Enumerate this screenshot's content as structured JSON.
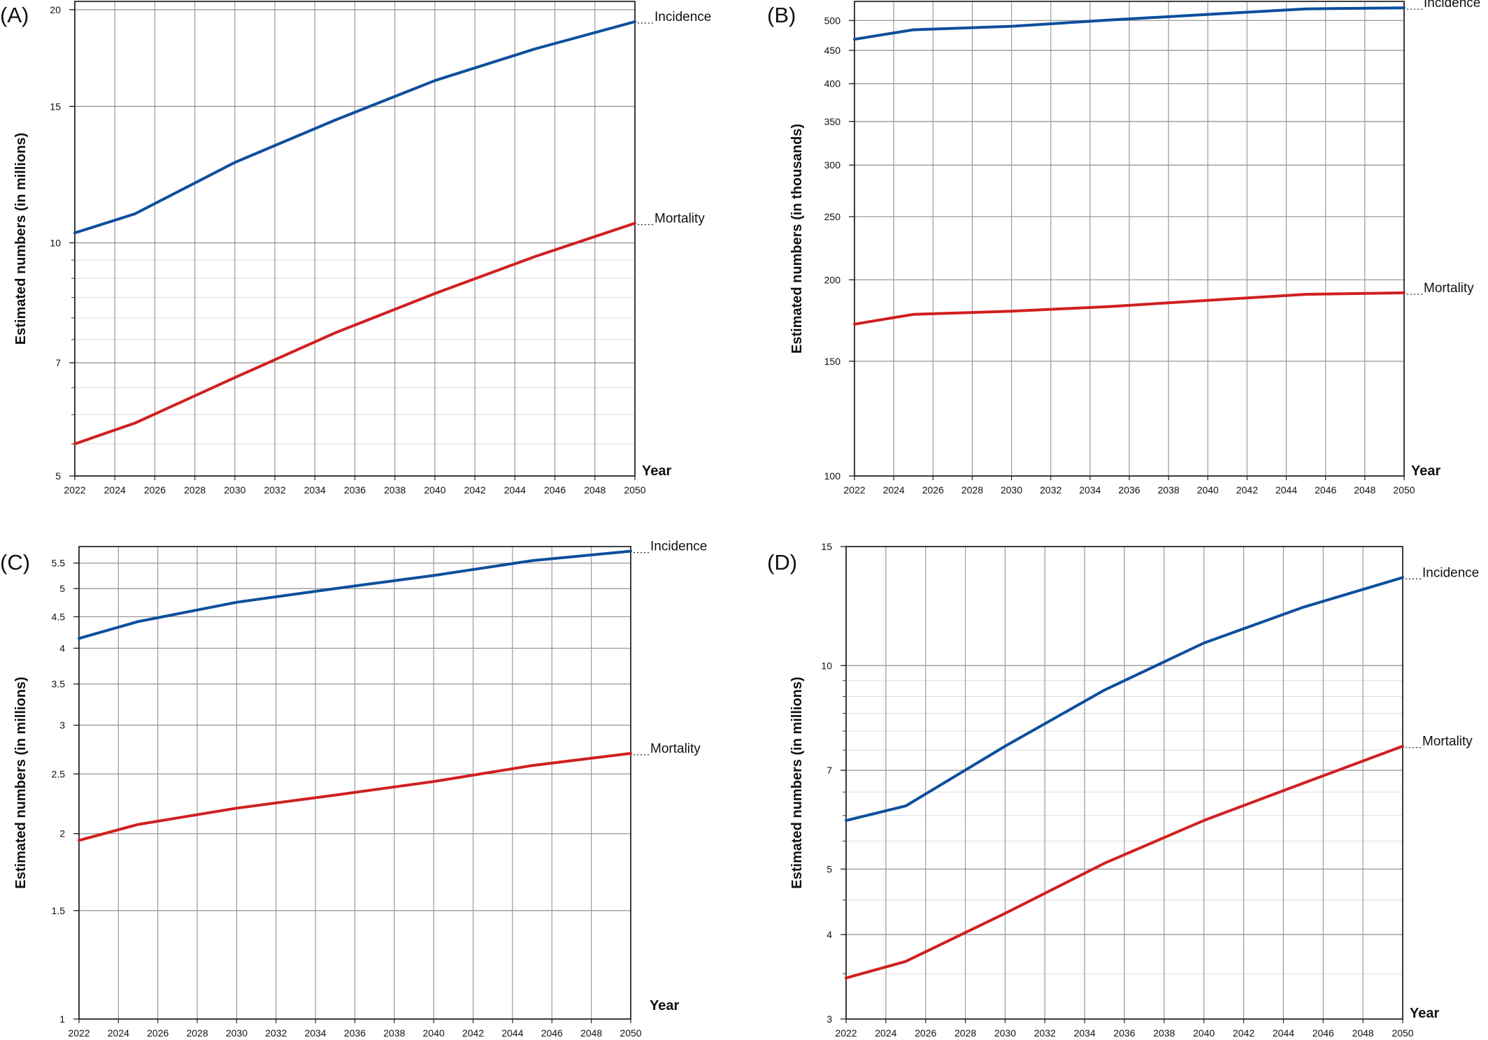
{
  "chart_data": [
    {
      "panel": "(A)",
      "type": "line",
      "xlabel": "Year",
      "ylabel": "Estimated numbers (in millions)",
      "yscale": "log",
      "xlim": [
        2022,
        2050
      ],
      "ylim": [
        5,
        20.5
      ],
      "xticks": [
        2022,
        2024,
        2026,
        2028,
        2030,
        2032,
        2034,
        2036,
        2038,
        2040,
        2042,
        2044,
        2046,
        2048,
        2050
      ],
      "yticks": [
        5,
        7,
        10,
        15,
        20
      ],
      "grid": true,
      "series": [
        {
          "name": "Incidence",
          "color": "#0d4f9c",
          "x": [
            2022,
            2025,
            2030,
            2035,
            2040,
            2045,
            2050
          ],
          "y": [
            10.3,
            10.9,
            12.7,
            14.4,
            16.2,
            17.8,
            19.3
          ]
        },
        {
          "name": "Mortality",
          "color": "#d01f1f",
          "x": [
            2022,
            2025,
            2030,
            2035,
            2040,
            2045,
            2050
          ],
          "y": [
            5.5,
            5.85,
            6.7,
            7.65,
            8.6,
            9.6,
            10.6
          ]
        }
      ]
    },
    {
      "panel": "(B)",
      "type": "line",
      "xlabel": "Year",
      "ylabel": "Estimated numbers (in thousands)",
      "yscale": "log",
      "xlim": [
        2022,
        2050
      ],
      "ylim": [
        100,
        535
      ],
      "xticks": [
        2022,
        2024,
        2026,
        2028,
        2030,
        2032,
        2034,
        2036,
        2038,
        2040,
        2042,
        2044,
        2046,
        2048,
        2050
      ],
      "yticks": [
        100,
        150,
        200,
        250,
        300,
        350,
        400,
        450,
        500
      ],
      "grid": true,
      "series": [
        {
          "name": "Incidence",
          "color": "#0d4f9c",
          "x": [
            2022,
            2025,
            2030,
            2035,
            2040,
            2045,
            2050
          ],
          "y": [
            468,
            484,
            490,
            501,
            511,
            521,
            523
          ]
        },
        {
          "name": "Mortality",
          "color": "#d01f1f",
          "x": [
            2022,
            2025,
            2030,
            2035,
            2040,
            2045,
            2050
          ],
          "y": [
            171,
            177,
            179,
            182,
            186,
            190,
            191
          ]
        }
      ]
    },
    {
      "panel": "(C)",
      "type": "line",
      "xlabel": "Year",
      "ylabel": "Estimated numbers (in millions)",
      "yscale": "log",
      "xlim": [
        2022,
        2050
      ],
      "ylim": [
        1,
        5.85
      ],
      "xticks": [
        2022,
        2024,
        2026,
        2028,
        2030,
        2032,
        2034,
        2036,
        2038,
        2040,
        2042,
        2044,
        2046,
        2048,
        2050
      ],
      "yticks": [
        1,
        1.5,
        2,
        2.5,
        3,
        3.5,
        4,
        4.5,
        5,
        5.5
      ],
      "grid": true,
      "series": [
        {
          "name": "Incidence",
          "color": "#0d4f9c",
          "x": [
            2022,
            2025,
            2030,
            2035,
            2040,
            2045,
            2050
          ],
          "y": [
            4.15,
            4.42,
            4.75,
            5.0,
            5.25,
            5.55,
            5.75
          ]
        },
        {
          "name": "Mortality",
          "color": "#d01f1f",
          "x": [
            2022,
            2025,
            2030,
            2035,
            2040,
            2045,
            2050
          ],
          "y": [
            1.95,
            2.07,
            2.2,
            2.31,
            2.43,
            2.58,
            2.7
          ]
        }
      ]
    },
    {
      "panel": "(D)",
      "type": "line",
      "xlabel": "Year",
      "ylabel": "Estimated numbers (in millions)",
      "yscale": "log",
      "xlim": [
        2022,
        2050
      ],
      "ylim": [
        3,
        15
      ],
      "xticks": [
        2022,
        2024,
        2026,
        2028,
        2030,
        2032,
        2034,
        2036,
        2038,
        2040,
        2042,
        2044,
        2046,
        2048,
        2050
      ],
      "yticks": [
        3,
        4,
        5,
        7,
        10,
        15
      ],
      "grid": true,
      "series": [
        {
          "name": "Incidence",
          "color": "#0d4f9c",
          "x": [
            2022,
            2025,
            2030,
            2035,
            2040,
            2045,
            2050
          ],
          "y": [
            5.9,
            6.2,
            7.6,
            9.2,
            10.8,
            12.2,
            13.5
          ]
        },
        {
          "name": "Mortality",
          "color": "#d01f1f",
          "x": [
            2022,
            2025,
            2030,
            2035,
            2040,
            2045,
            2050
          ],
          "y": [
            3.45,
            3.65,
            4.3,
            5.1,
            5.9,
            6.7,
            7.6
          ]
        }
      ]
    }
  ]
}
